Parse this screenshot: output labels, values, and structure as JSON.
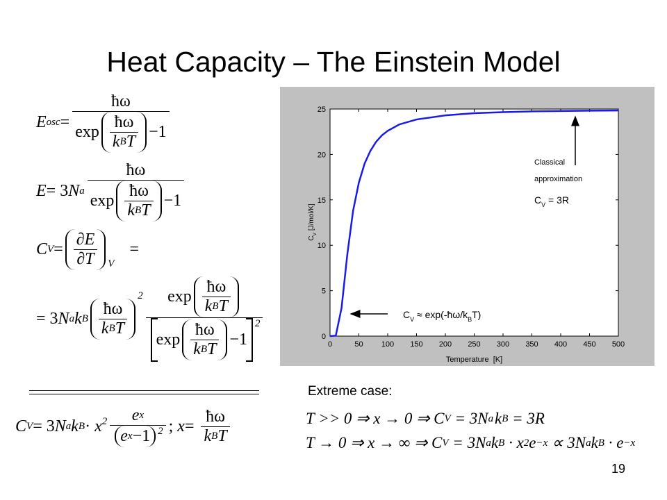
{
  "title": "Heat Capacity – The Einstein Model",
  "equations": {
    "e1": [
      "E",
      "osc",
      "=",
      "ħω",
      "exp",
      "ħω",
      "k",
      "B",
      "T",
      "−1"
    ],
    "e2": [
      "E",
      "= 3",
      "N",
      "a",
      "ħω",
      "exp",
      "ħω",
      "k",
      "B",
      "T",
      "−1"
    ],
    "e3": [
      "C",
      "V",
      "=",
      "∂E",
      "∂T",
      "V",
      "="
    ],
    "e4": [
      "= 3",
      "N",
      "a",
      "k",
      "B",
      "ħω",
      "k",
      "B",
      "T",
      "2",
      "exp",
      "ħω",
      "k",
      "B",
      "T",
      "exp",
      "ħω",
      "k",
      "B",
      "T",
      "−1",
      "2"
    ],
    "e5": [
      "C",
      "V",
      "= 3",
      "N",
      "a",
      "k",
      "B",
      "· ",
      "x",
      "2",
      "e",
      "x",
      "e",
      "x",
      "−1",
      "2",
      "; ",
      "x",
      "= ",
      "ħω",
      "k",
      "B",
      "T"
    ],
    "t1": [
      "T >> 0 ⇒ x → 0 ⇒ C",
      "V",
      " = 3N",
      "a",
      "k",
      "B",
      " = 3R"
    ],
    "t2": [
      "T → 0 ⇒ x → ∞ ⇒ C",
      "V",
      " = 3N",
      "a",
      "k",
      "B",
      " · x",
      "2",
      "e",
      "−x",
      " ∝ 3N",
      "a",
      "k",
      "B",
      " · e",
      "−x"
    ]
  },
  "extreme": "Extreme case:",
  "slide_number": "19",
  "chart_data": {
    "type": "line",
    "xlabel": "Temperature  [K]",
    "ylabel": [
      "C",
      "V",
      " [J/mol/K]"
    ],
    "x": [
      0,
      10,
      20,
      30,
      40,
      50,
      60,
      70,
      80,
      90,
      100,
      120,
      150,
      200,
      250,
      300,
      350,
      400,
      450,
      500
    ],
    "series": [
      {
        "color": "#1a1ae6",
        "values": [
          0,
          0.05,
          3.1,
          9.0,
          13.8,
          16.9,
          19.0,
          20.4,
          21.4,
          22.1,
          22.6,
          23.3,
          23.85,
          24.3,
          24.54,
          24.66,
          24.74,
          24.78,
          24.82,
          24.84
        ]
      }
    ],
    "xlim": [
      0,
      500
    ],
    "xticks": [
      0,
      50,
      100,
      150,
      200,
      250,
      300,
      350,
      400,
      450,
      500
    ],
    "ylim": [
      0,
      25
    ],
    "yticks": [
      0,
      5,
      10,
      15,
      20,
      25
    ],
    "annotations": [
      {
        "parts": [
          "Classical",
          "approximation"
        ]
      },
      {
        "parts": [
          "C",
          "V",
          " = 3R"
        ]
      },
      {
        "parts": [
          "C",
          "V",
          " ≈ exp(-ħω/k",
          "B",
          "T)"
        ]
      }
    ]
  }
}
